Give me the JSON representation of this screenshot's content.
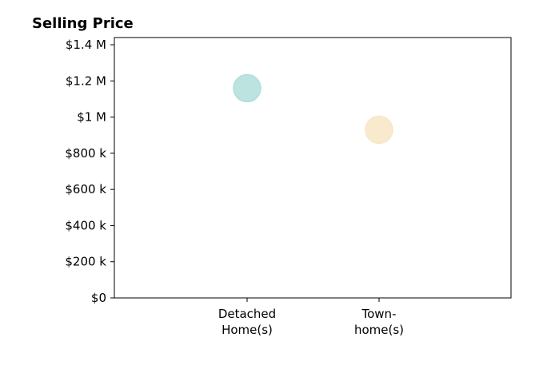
{
  "chart_data": {
    "type": "scatter",
    "title": "Selling Price",
    "xlabel": "",
    "ylabel": "",
    "categories": [
      [
        "Detached",
        "Home(s)"
      ],
      [
        "Town-",
        "home(s)"
      ]
    ],
    "series": [
      {
        "values": [
          1160000,
          930000
        ],
        "colors": [
          "#b0ded9",
          "#f8e6c5"
        ]
      }
    ],
    "ylim": [
      0,
      1440000
    ],
    "yticks": [
      0,
      200000,
      400000,
      600000,
      800000,
      1000000,
      1200000,
      1400000
    ],
    "ytick_labels": [
      "$0",
      "$200 k",
      "$400 k",
      "$600 k",
      "$800 k",
      "$1 M",
      "$1.2 M",
      "$1.4 M"
    ],
    "grid": false
  }
}
